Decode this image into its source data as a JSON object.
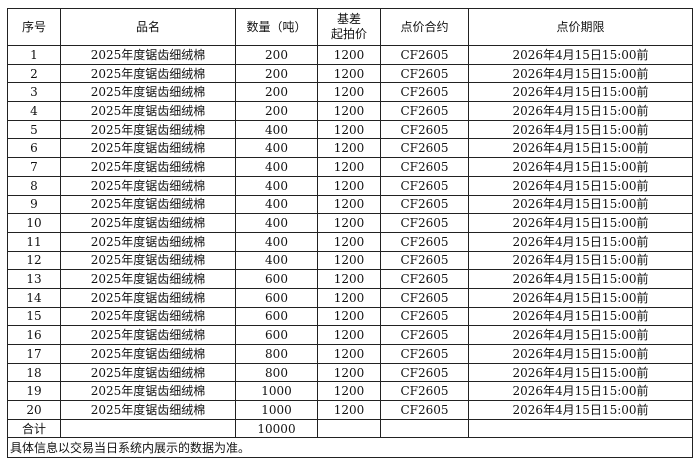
{
  "headers": [
    "序号",
    "品名",
    "数量（吨）",
    "基差\n起拍价",
    "点价合约",
    "点价期限"
  ],
  "header_basis_line1": "基差",
  "header_basis_line2": "起拍价",
  "rows": [
    [
      "1",
      "2025年度锯齿细绒棉",
      "200",
      "1200",
      "CF2605",
      "2026年4月15日15:00前"
    ],
    [
      "2",
      "2025年度锯齿细绒棉",
      "200",
      "1200",
      "CF2605",
      "2026年4月15日15:00前"
    ],
    [
      "3",
      "2025年度锯齿细绒棉",
      "200",
      "1200",
      "CF2605",
      "2026年4月15日15:00前"
    ],
    [
      "4",
      "2025年度锯齿细绒棉",
      "200",
      "1200",
      "CF2605",
      "2026年4月15日15:00前"
    ],
    [
      "5",
      "2025年度锯齿细绒棉",
      "400",
      "1200",
      "CF2605",
      "2026年4月15日15:00前"
    ],
    [
      "6",
      "2025年度锯齿细绒棉",
      "400",
      "1200",
      "CF2605",
      "2026年4月15日15:00前"
    ],
    [
      "7",
      "2025年度锯齿细绒棉",
      "400",
      "1200",
      "CF2605",
      "2026年4月15日15:00前"
    ],
    [
      "8",
      "2025年度锯齿细绒棉",
      "400",
      "1200",
      "CF2605",
      "2026年4月15日15:00前"
    ],
    [
      "9",
      "2025年度锯齿细绒棉",
      "400",
      "1200",
      "CF2605",
      "2026年4月15日15:00前"
    ],
    [
      "10",
      "2025年度锯齿细绒棉",
      "400",
      "1200",
      "CF2605",
      "2026年4月15日15:00前"
    ],
    [
      "11",
      "2025年度锯齿细绒棉",
      "400",
      "1200",
      "CF2605",
      "2026年4月15日15:00前"
    ],
    [
      "12",
      "2025年度锯齿细绒棉",
      "400",
      "1200",
      "CF2605",
      "2026年4月15日15:00前"
    ],
    [
      "13",
      "2025年度锯齿细绒棉",
      "600",
      "1200",
      "CF2605",
      "2026年4月15日15:00前"
    ],
    [
      "14",
      "2025年度锯齿细绒棉",
      "600",
      "1200",
      "CF2605",
      "2026年4月15日15:00前"
    ],
    [
      "15",
      "2025年度锯齿细绒棉",
      "600",
      "1200",
      "CF2605",
      "2026年4月15日15:00前"
    ],
    [
      "16",
      "2025年度锯齿细绒棉",
      "600",
      "1200",
      "CF2605",
      "2026年4月15日15:00前"
    ],
    [
      "17",
      "2025年度锯齿细绒棉",
      "800",
      "1200",
      "CF2605",
      "2026年4月15日15:00前"
    ],
    [
      "18",
      "2025年度锯齿细绒棉",
      "800",
      "1200",
      "CF2605",
      "2026年4月15日15:00前"
    ],
    [
      "19",
      "2025年度锯齿细绒棉",
      "1000",
      "1200",
      "CF2605",
      "2026年4月15日15:00前"
    ],
    [
      "20",
      "2025年度锯齿细绒棉",
      "1000",
      "1200",
      "CF2605",
      "2026年4月15日15:00前"
    ]
  ],
  "total": {
    "label": "合计",
    "quantity": "10000"
  },
  "note": "具体信息以交易当日系统内展示的数据为准。"
}
